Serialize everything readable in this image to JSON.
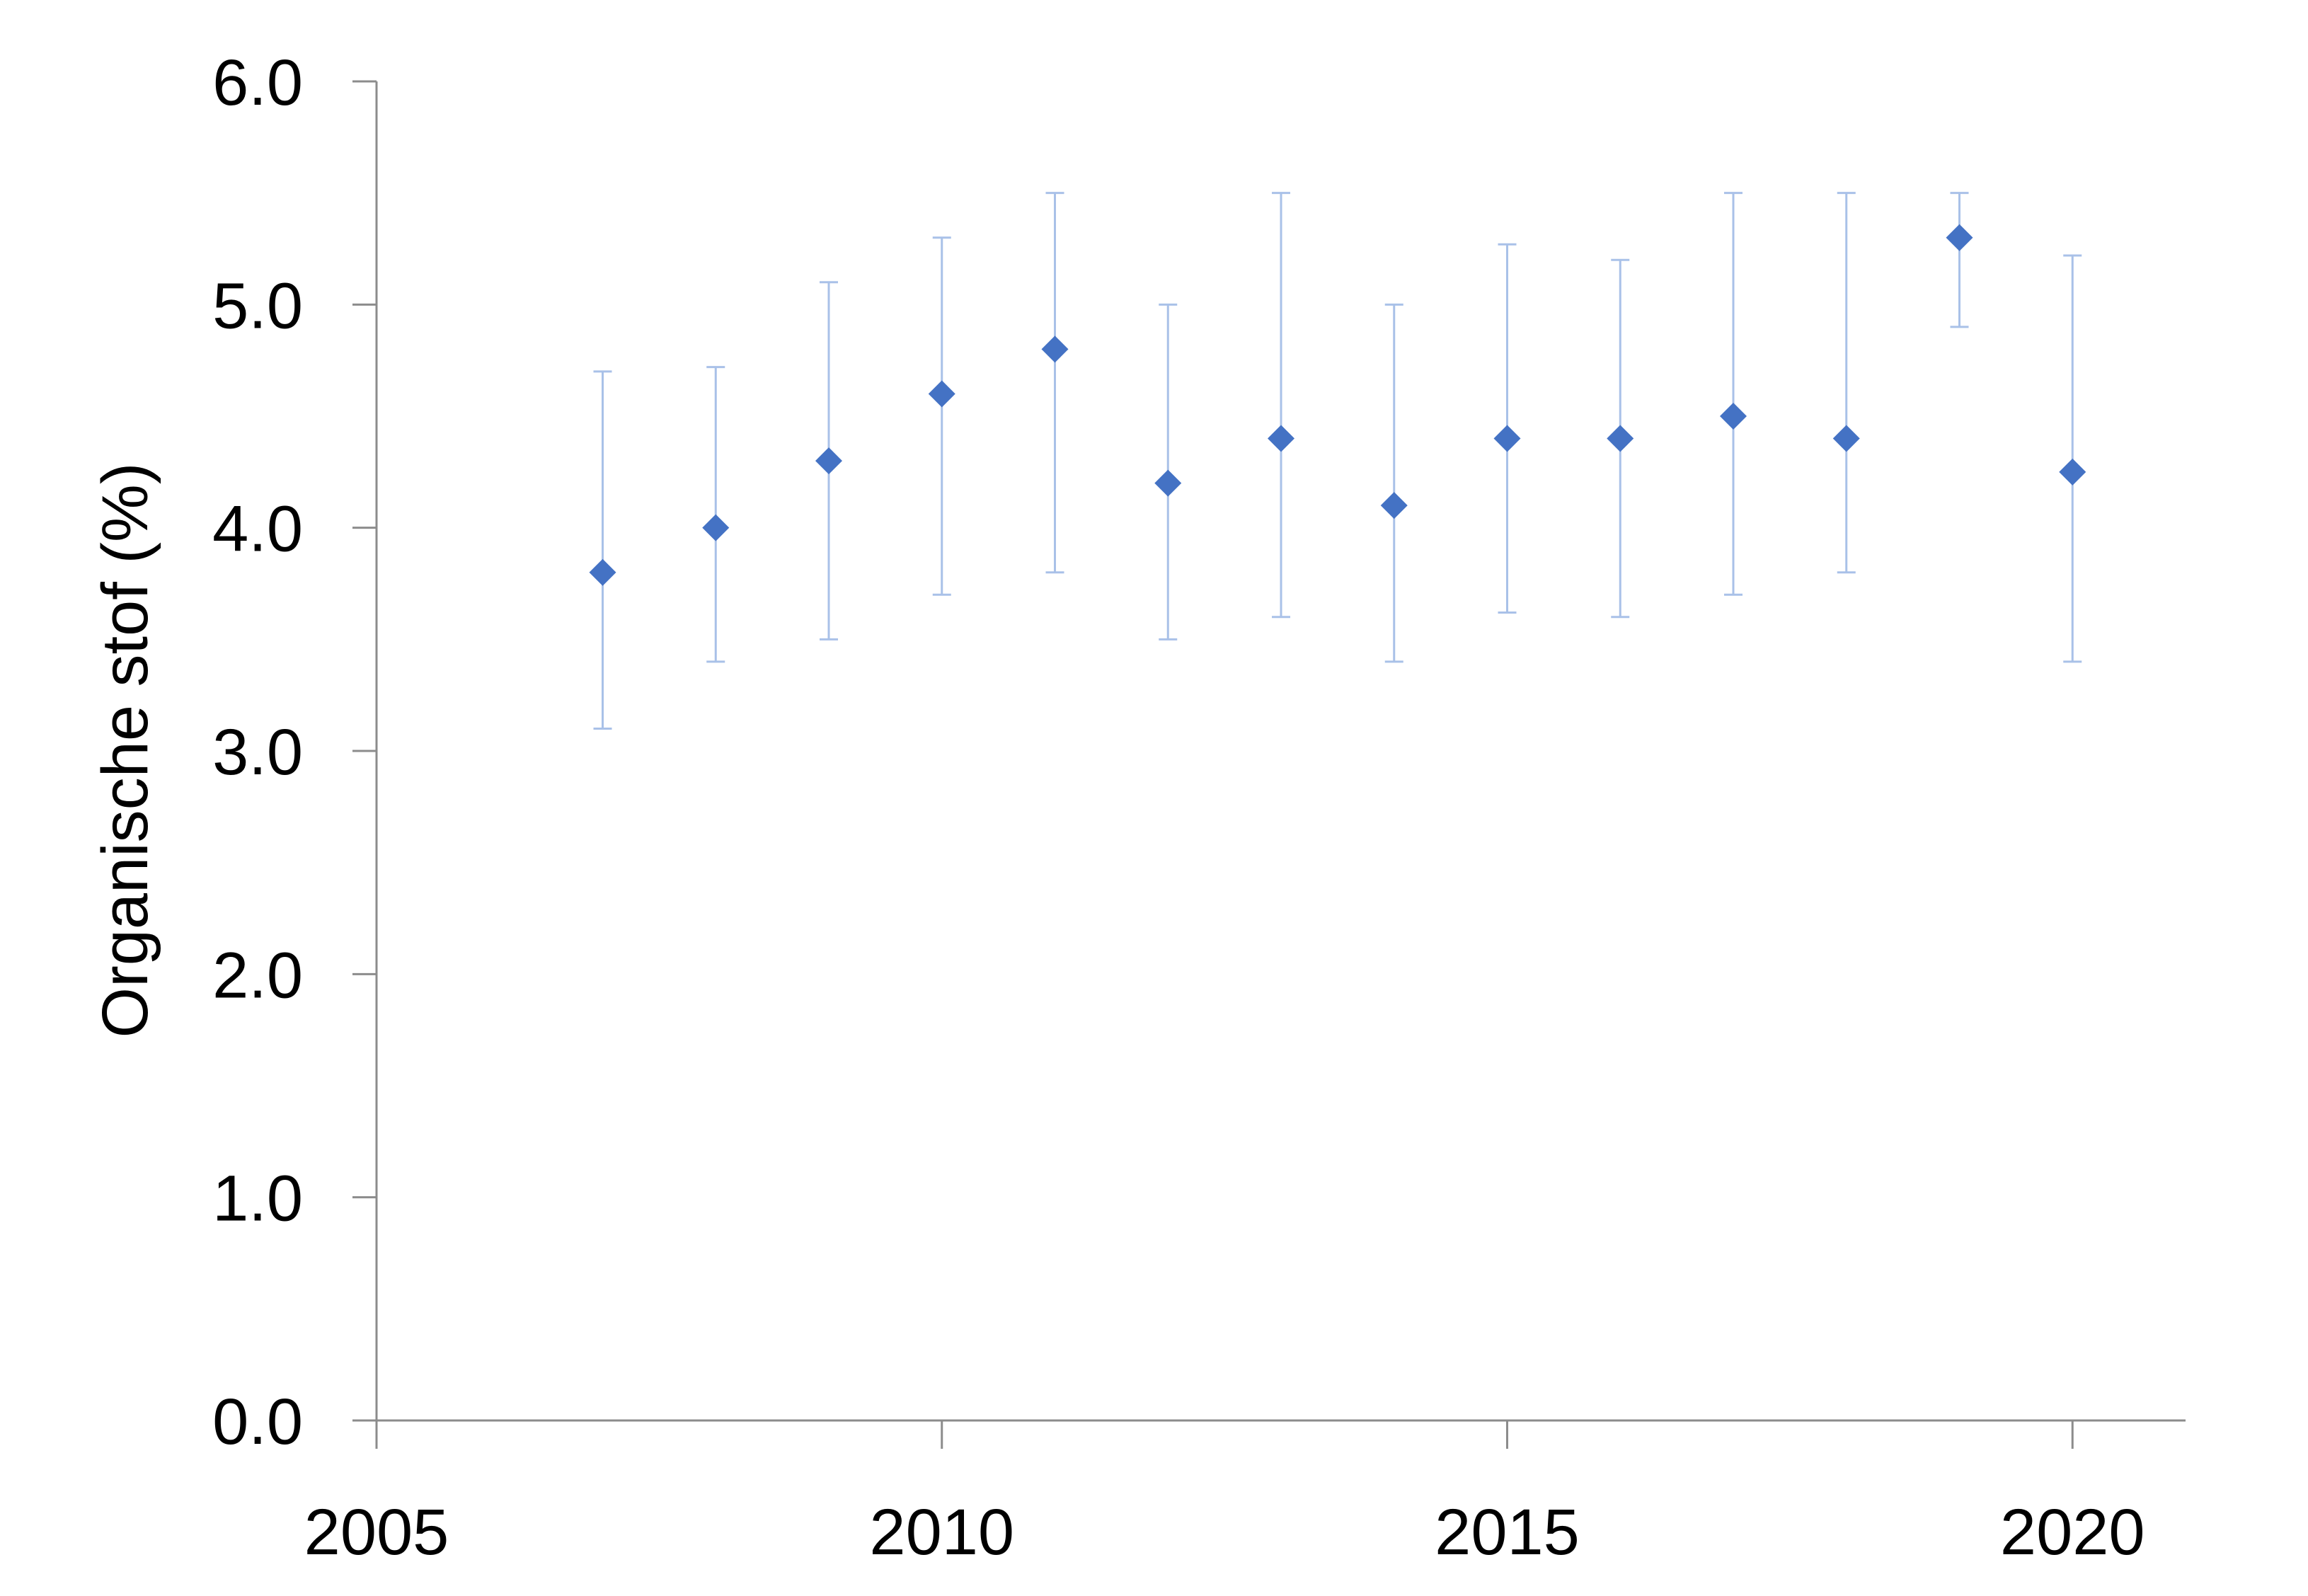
{
  "chart_data": {
    "type": "scatter",
    "title": "",
    "xlabel": "",
    "ylabel": "Organische stof (%)",
    "xlim": [
      2005,
      2021
    ],
    "ylim": [
      0,
      6
    ],
    "x_ticks": [
      2005,
      2010,
      2015,
      2020
    ],
    "x_tick_labels": [
      "2005",
      "2010",
      "2015",
      "2020"
    ],
    "y_ticks": [
      0,
      1,
      2,
      3,
      4,
      5,
      6
    ],
    "y_tick_labels": [
      "0.0",
      "1.0",
      "2.0",
      "3.0",
      "4.0",
      "5.0",
      "6.0"
    ],
    "grid": false,
    "legend": "none",
    "marker": "diamond",
    "colors": {
      "marker": "#4472C4",
      "error_bar": "#A9C1E8",
      "axis": "#8C8C8C",
      "text": "#000000"
    },
    "series": [
      {
        "x": [
          2007,
          2008,
          2009,
          2010,
          2011,
          2012,
          2013,
          2014,
          2015,
          2016,
          2017,
          2018,
          2019,
          2020
        ],
        "y": [
          3.8,
          4.0,
          4.3,
          4.6,
          4.8,
          4.2,
          4.4,
          4.1,
          4.4,
          4.4,
          4.5,
          4.4,
          5.3,
          4.25
        ],
        "y_low": [
          3.1,
          3.4,
          3.5,
          3.7,
          3.8,
          3.5,
          3.6,
          3.4,
          3.62,
          3.6,
          3.7,
          3.8,
          4.9,
          3.4
        ],
        "y_high": [
          4.7,
          4.72,
          5.1,
          5.3,
          5.5,
          5.0,
          5.5,
          5.0,
          5.27,
          5.2,
          5.5,
          5.5,
          5.5,
          5.22
        ]
      }
    ]
  }
}
